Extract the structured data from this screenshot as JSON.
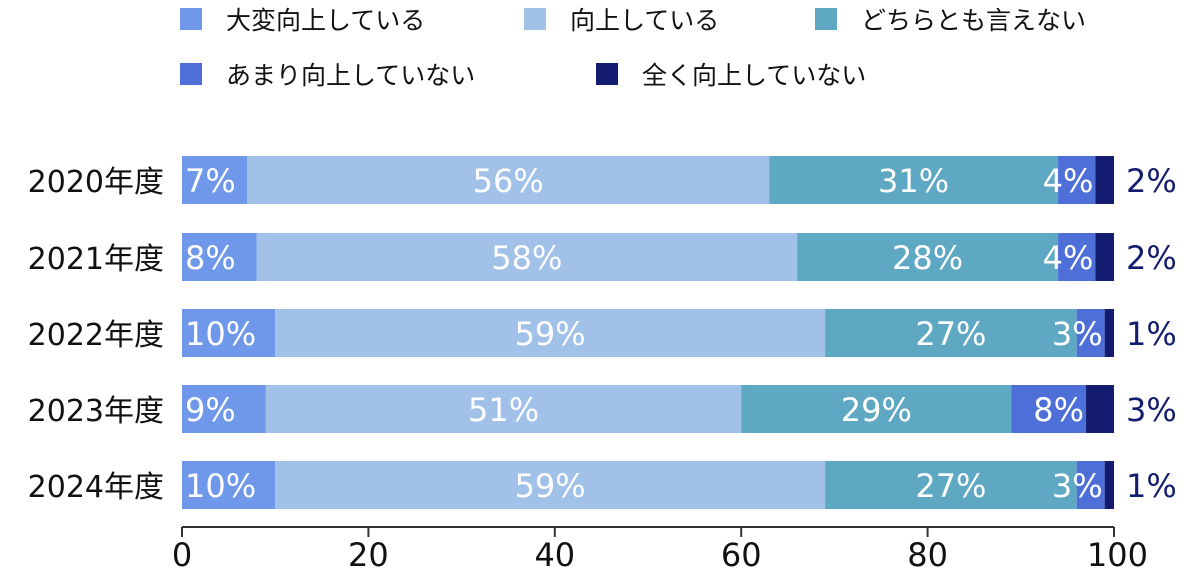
{
  "chart_data": {
    "type": "bar",
    "orientation": "horizontal",
    "stacked": true,
    "categories": [
      "2020年度",
      "2021年度",
      "2022年度",
      "2023年度",
      "2024年度"
    ],
    "series": [
      {
        "name": "大変向上している",
        "color": "#6f98ea",
        "values": [
          7,
          8,
          10,
          9,
          10
        ]
      },
      {
        "name": "向上している",
        "color": "#a1c1e9",
        "values": [
          56,
          58,
          59,
          51,
          59
        ]
      },
      {
        "name": "どちらとも言えない",
        "color": "#5ea8c4",
        "values": [
          31,
          28,
          27,
          29,
          27
        ]
      },
      {
        "name": "あまり向上していない",
        "color": "#4f6fd8",
        "values": [
          4,
          4,
          3,
          8,
          3
        ]
      },
      {
        "name": "全く向上していない",
        "color": "#131c6e",
        "values": [
          2,
          2,
          1,
          3,
          1
        ]
      }
    ],
    "data_labels": [
      [
        "7%",
        "56%",
        "31%",
        "4%",
        "2%"
      ],
      [
        "8%",
        "58%",
        "28%",
        "4%",
        "2%"
      ],
      [
        "10%",
        "59%",
        "27%",
        "3%",
        "1%"
      ],
      [
        "9%",
        "51%",
        "29%",
        "8%",
        "3%"
      ],
      [
        "10%",
        "59%",
        "27%",
        "3%",
        "1%"
      ]
    ],
    "xlim": [
      0,
      100
    ],
    "x_ticks": [
      "0",
      "20",
      "40",
      "60",
      "80",
      "100"
    ],
    "legend_position": "top",
    "grid": false
  }
}
